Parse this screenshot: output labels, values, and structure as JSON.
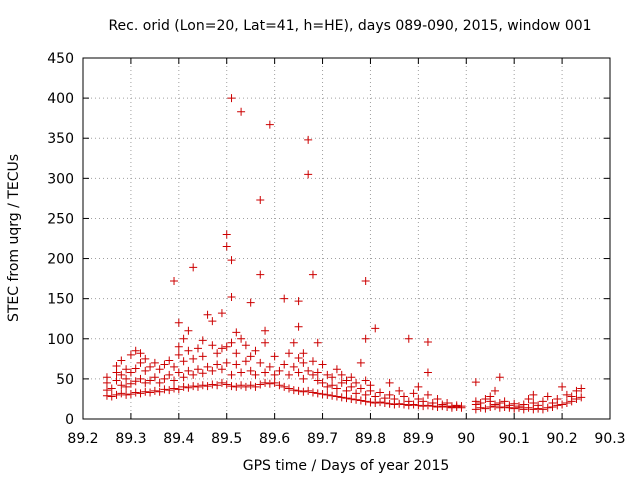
{
  "chart_data": {
    "type": "scatter",
    "title": "Rec. orid (Lon=20, Lat=41, h=HE), days 089-090, 2015, window 001",
    "xlabel": "GPS time / Days of year 2015",
    "ylabel": "STEC from uqrg / TECUs",
    "xlim": [
      89.2,
      90.3
    ],
    "ylim": [
      0,
      450
    ],
    "xticks": [
      89.2,
      89.3,
      89.4,
      89.5,
      89.6,
      89.7,
      89.8,
      89.9,
      90,
      90.1,
      90.2,
      90.3
    ],
    "xtick_labels": [
      "89.2",
      "89.3",
      "89.4",
      "89.5",
      "89.6",
      "89.7",
      "89.8",
      "89.9",
      "90",
      "90.1",
      "90.2",
      "90.3"
    ],
    "yticks": [
      0,
      50,
      100,
      150,
      200,
      250,
      300,
      350,
      400,
      450
    ],
    "ytick_labels": [
      "0",
      "50",
      "100",
      "150",
      "200",
      "250",
      "300",
      "350",
      "400",
      "450"
    ],
    "grid": true,
    "marker": "+",
    "color": "#cc0000",
    "series": [
      {
        "name": "STEC",
        "points": [
          [
            89.25,
            29
          ],
          [
            89.25,
            36
          ],
          [
            89.25,
            45
          ],
          [
            89.25,
            52
          ],
          [
            89.26,
            28
          ],
          [
            89.26,
            38
          ],
          [
            89.27,
            30
          ],
          [
            89.27,
            48
          ],
          [
            89.27,
            58
          ],
          [
            89.27,
            66
          ],
          [
            89.28,
            32
          ],
          [
            89.28,
            42
          ],
          [
            89.28,
            55
          ],
          [
            89.28,
            73
          ],
          [
            89.29,
            30
          ],
          [
            89.29,
            40
          ],
          [
            89.29,
            50
          ],
          [
            89.29,
            62
          ],
          [
            89.3,
            31
          ],
          [
            89.3,
            44
          ],
          [
            89.3,
            58
          ],
          [
            89.3,
            80
          ],
          [
            89.31,
            33
          ],
          [
            89.31,
            47
          ],
          [
            89.31,
            63
          ],
          [
            89.31,
            85
          ],
          [
            89.32,
            32
          ],
          [
            89.32,
            50
          ],
          [
            89.32,
            70
          ],
          [
            89.32,
            82
          ],
          [
            89.33,
            34
          ],
          [
            89.33,
            45
          ],
          [
            89.33,
            60
          ],
          [
            89.33,
            75
          ],
          [
            89.34,
            33
          ],
          [
            89.34,
            48
          ],
          [
            89.34,
            65
          ],
          [
            89.35,
            35
          ],
          [
            89.35,
            52
          ],
          [
            89.35,
            70
          ],
          [
            89.36,
            34
          ],
          [
            89.36,
            45
          ],
          [
            89.36,
            62
          ],
          [
            89.37,
            37
          ],
          [
            89.37,
            50
          ],
          [
            89.37,
            68
          ],
          [
            89.38,
            36
          ],
          [
            89.38,
            55
          ],
          [
            89.38,
            73
          ],
          [
            89.39,
            38
          ],
          [
            89.39,
            48
          ],
          [
            89.39,
            65
          ],
          [
            89.39,
            172
          ],
          [
            89.4,
            37
          ],
          [
            89.4,
            58
          ],
          [
            89.4,
            80
          ],
          [
            89.4,
            90
          ],
          [
            89.4,
            120
          ],
          [
            89.41,
            40
          ],
          [
            89.41,
            52
          ],
          [
            89.41,
            72
          ],
          [
            89.41,
            100
          ],
          [
            89.42,
            39
          ],
          [
            89.42,
            60
          ],
          [
            89.42,
            85
          ],
          [
            89.42,
            110
          ],
          [
            89.43,
            41
          ],
          [
            89.43,
            55
          ],
          [
            89.43,
            75
          ],
          [
            89.43,
            189
          ],
          [
            89.44,
            40
          ],
          [
            89.44,
            62
          ],
          [
            89.44,
            88
          ],
          [
            89.45,
            42
          ],
          [
            89.45,
            57
          ],
          [
            89.45,
            78
          ],
          [
            89.45,
            98
          ],
          [
            89.46,
            41
          ],
          [
            89.46,
            65
          ],
          [
            89.46,
            130
          ],
          [
            89.47,
            43
          ],
          [
            89.47,
            60
          ],
          [
            89.47,
            92
          ],
          [
            89.47,
            122
          ],
          [
            89.48,
            42
          ],
          [
            89.48,
            68
          ],
          [
            89.48,
            82
          ],
          [
            89.49,
            45
          ],
          [
            89.49,
            62
          ],
          [
            89.49,
            88
          ],
          [
            89.49,
            132
          ],
          [
            89.5,
            43
          ],
          [
            89.5,
            70
          ],
          [
            89.5,
            90
          ],
          [
            89.5,
            215
          ],
          [
            89.5,
            230
          ],
          [
            89.51,
            41
          ],
          [
            89.51,
            55
          ],
          [
            89.51,
            95
          ],
          [
            89.51,
            152
          ],
          [
            89.51,
            198
          ],
          [
            89.51,
            400
          ],
          [
            89.52,
            40
          ],
          [
            89.52,
            68
          ],
          [
            89.52,
            82
          ],
          [
            89.52,
            108
          ],
          [
            89.53,
            42
          ],
          [
            89.53,
            58
          ],
          [
            89.53,
            100
          ],
          [
            89.53,
            383
          ],
          [
            89.54,
            40
          ],
          [
            89.54,
            72
          ],
          [
            89.54,
            92
          ],
          [
            89.55,
            42
          ],
          [
            89.55,
            60
          ],
          [
            89.55,
            78
          ],
          [
            89.55,
            145
          ],
          [
            89.56,
            40
          ],
          [
            89.56,
            55
          ],
          [
            89.56,
            85
          ],
          [
            89.57,
            43
          ],
          [
            89.57,
            70
          ],
          [
            89.57,
            180
          ],
          [
            89.57,
            273
          ],
          [
            89.58,
            45
          ],
          [
            89.58,
            58
          ],
          [
            89.58,
            95
          ],
          [
            89.58,
            110
          ],
          [
            89.59,
            44
          ],
          [
            89.59,
            65
          ],
          [
            89.59,
            367
          ],
          [
            89.6,
            45
          ],
          [
            89.6,
            55
          ],
          [
            89.6,
            78
          ],
          [
            89.61,
            42
          ],
          [
            89.61,
            60
          ],
          [
            89.62,
            40
          ],
          [
            89.62,
            68
          ],
          [
            89.62,
            150
          ],
          [
            89.63,
            38
          ],
          [
            89.63,
            55
          ],
          [
            89.63,
            82
          ],
          [
            89.64,
            36
          ],
          [
            89.64,
            65
          ],
          [
            89.64,
            95
          ],
          [
            89.65,
            35
          ],
          [
            89.65,
            58
          ],
          [
            89.65,
            76
          ],
          [
            89.65,
            115
          ],
          [
            89.65,
            147
          ],
          [
            89.66,
            34
          ],
          [
            89.66,
            50
          ],
          [
            89.66,
            70
          ],
          [
            89.66,
            82
          ],
          [
            89.67,
            35
          ],
          [
            89.67,
            60
          ],
          [
            89.67,
            305
          ],
          [
            89.67,
            348
          ],
          [
            89.68,
            33
          ],
          [
            89.68,
            55
          ],
          [
            89.68,
            72
          ],
          [
            89.68,
            180
          ],
          [
            89.69,
            32
          ],
          [
            89.69,
            48
          ],
          [
            89.69,
            58
          ],
          [
            89.69,
            95
          ],
          [
            89.7,
            31
          ],
          [
            89.7,
            45
          ],
          [
            89.7,
            68
          ],
          [
            89.71,
            30
          ],
          [
            89.71,
            40
          ],
          [
            89.71,
            55
          ],
          [
            89.72,
            29
          ],
          [
            89.72,
            42
          ],
          [
            89.72,
            52
          ],
          [
            89.73,
            28
          ],
          [
            89.73,
            38
          ],
          [
            89.73,
            62
          ],
          [
            89.74,
            27
          ],
          [
            89.74,
            45
          ],
          [
            89.74,
            55
          ],
          [
            89.75,
            26
          ],
          [
            89.75,
            35
          ],
          [
            89.75,
            48
          ],
          [
            89.76,
            25
          ],
          [
            89.76,
            40
          ],
          [
            89.76,
            52
          ],
          [
            89.77,
            24
          ],
          [
            89.77,
            32
          ],
          [
            89.77,
            45
          ],
          [
            89.78,
            23
          ],
          [
            89.78,
            38
          ],
          [
            89.78,
            70
          ],
          [
            89.79,
            22
          ],
          [
            89.79,
            30
          ],
          [
            89.79,
            48
          ],
          [
            89.79,
            100
          ],
          [
            89.79,
            172
          ],
          [
            89.8,
            21
          ],
          [
            89.8,
            35
          ],
          [
            89.8,
            42
          ],
          [
            89.81,
            20
          ],
          [
            89.81,
            28
          ],
          [
            89.81,
            113
          ],
          [
            89.82,
            21
          ],
          [
            89.82,
            33
          ],
          [
            89.83,
            20
          ],
          [
            89.83,
            26
          ],
          [
            89.84,
            19
          ],
          [
            89.84,
            30
          ],
          [
            89.84,
            45
          ],
          [
            89.85,
            18
          ],
          [
            89.85,
            25
          ],
          [
            89.86,
            19
          ],
          [
            89.86,
            35
          ],
          [
            89.87,
            18
          ],
          [
            89.87,
            28
          ],
          [
            89.88,
            17
          ],
          [
            89.88,
            22
          ],
          [
            89.88,
            100
          ],
          [
            89.89,
            18
          ],
          [
            89.89,
            32
          ],
          [
            89.9,
            17
          ],
          [
            89.9,
            25
          ],
          [
            89.9,
            40
          ],
          [
            89.91,
            16
          ],
          [
            89.91,
            22
          ],
          [
            89.92,
            17
          ],
          [
            89.92,
            30
          ],
          [
            89.92,
            58
          ],
          [
            89.92,
            96
          ],
          [
            89.93,
            16
          ],
          [
            89.93,
            20
          ],
          [
            89.94,
            15
          ],
          [
            89.94,
            25
          ],
          [
            89.95,
            16
          ],
          [
            89.95,
            18
          ],
          [
            89.96,
            15
          ],
          [
            89.96,
            20
          ],
          [
            89.97,
            16
          ],
          [
            89.97,
            14
          ],
          [
            89.98,
            15
          ],
          [
            89.98,
            17
          ],
          [
            89.99,
            14
          ],
          [
            89.99,
            16
          ],
          [
            90.02,
            12
          ],
          [
            90.02,
            18
          ],
          [
            90.02,
            22
          ],
          [
            90.02,
            46
          ],
          [
            90.03,
            14
          ],
          [
            90.03,
            20
          ],
          [
            90.04,
            13
          ],
          [
            90.04,
            25
          ],
          [
            90.05,
            15
          ],
          [
            90.05,
            28
          ],
          [
            90.05,
            22
          ],
          [
            90.06,
            16
          ],
          [
            90.06,
            35
          ],
          [
            90.06,
            18
          ],
          [
            90.07,
            14
          ],
          [
            90.07,
            52
          ],
          [
            90.07,
            20
          ],
          [
            90.08,
            15
          ],
          [
            90.08,
            22
          ],
          [
            90.09,
            14
          ],
          [
            90.09,
            17
          ],
          [
            90.1,
            13
          ],
          [
            90.1,
            19
          ],
          [
            90.11,
            14
          ],
          [
            90.11,
            16
          ],
          [
            90.12,
            12
          ],
          [
            90.12,
            18
          ],
          [
            90.13,
            14
          ],
          [
            90.13,
            25
          ],
          [
            90.14,
            12
          ],
          [
            90.14,
            20
          ],
          [
            90.14,
            30
          ],
          [
            90.15,
            13
          ],
          [
            90.15,
            17
          ],
          [
            90.16,
            12
          ],
          [
            90.16,
            22
          ],
          [
            90.17,
            14
          ],
          [
            90.17,
            28
          ],
          [
            90.18,
            15
          ],
          [
            90.18,
            20
          ],
          [
            90.19,
            17
          ],
          [
            90.19,
            25
          ],
          [
            90.2,
            18
          ],
          [
            90.2,
            40
          ],
          [
            90.21,
            20
          ],
          [
            90.21,
            30
          ],
          [
            90.22,
            22
          ],
          [
            90.22,
            28
          ],
          [
            90.23,
            25
          ],
          [
            90.23,
            35
          ],
          [
            90.24,
            27
          ],
          [
            90.24,
            38
          ]
        ]
      }
    ]
  }
}
